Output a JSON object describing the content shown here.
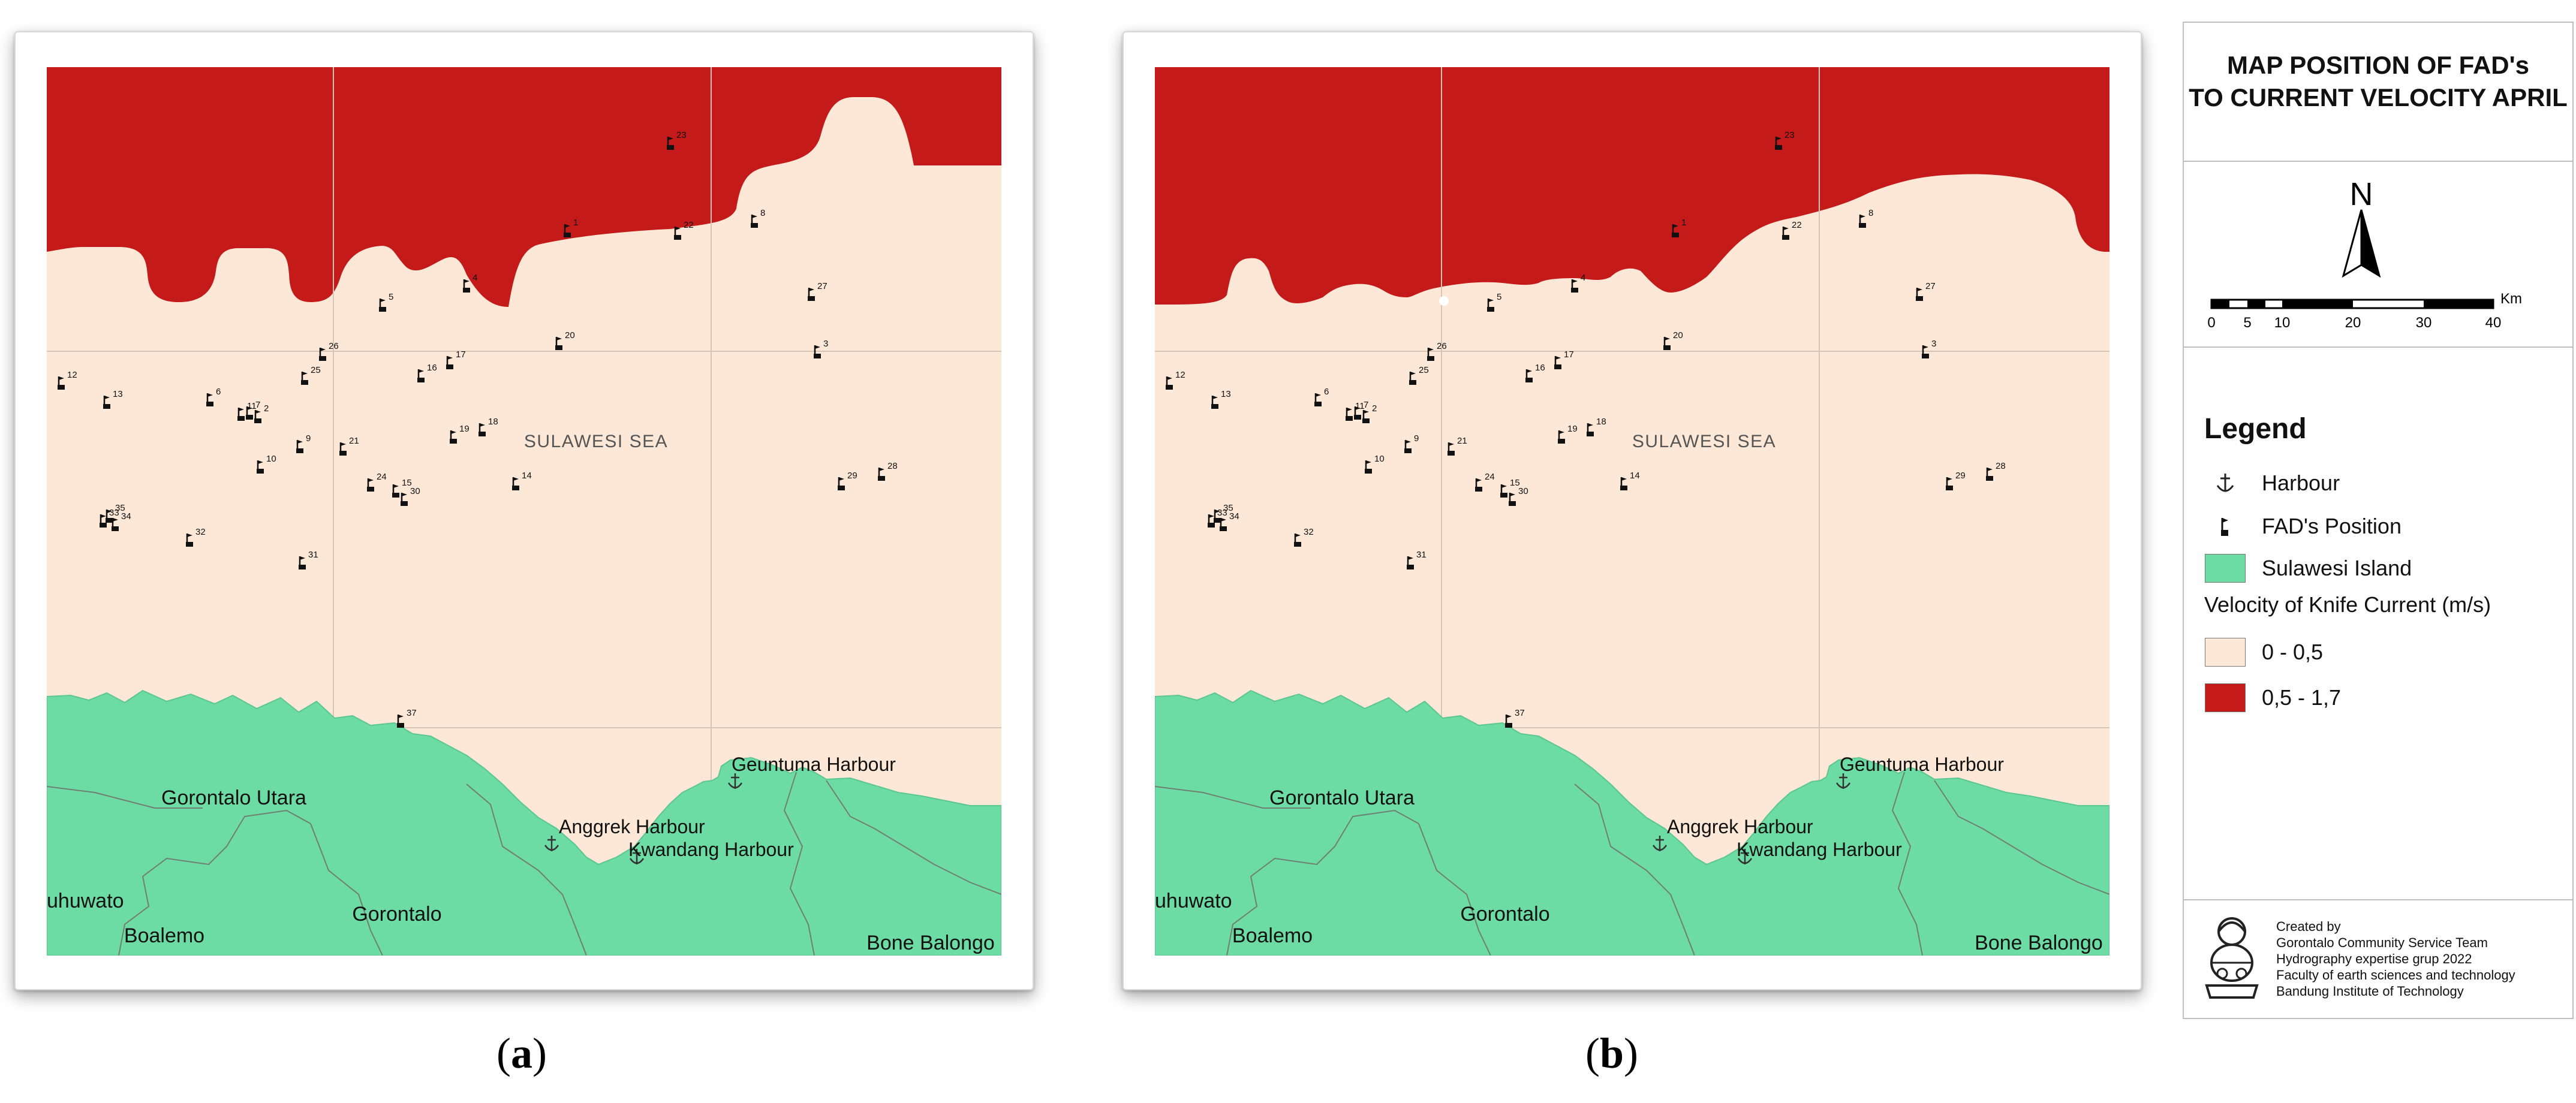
{
  "panels": [
    {
      "id": "a",
      "caption_open": "(",
      "caption_letter": "a",
      "caption_close": ")"
    },
    {
      "id": "b",
      "caption_open": "(",
      "caption_letter": "b",
      "caption_close": ")"
    }
  ],
  "map_labels": {
    "sea": "SULAWESI SEA",
    "gorontalo_utara": "Gorontalo Utara",
    "gorontalo": "Gorontalo",
    "boalemo": "Boalemo",
    "pohuwato": "uhuwato",
    "bone_balongo": "Bone Balongo",
    "geuntuma": "Geuntuma Harbour",
    "anggrek": "Anggrek Harbour",
    "kwandang": "Kwandang Harbour"
  },
  "fad_positions": [
    {
      "id": "1"
    },
    {
      "id": "2"
    },
    {
      "id": "3"
    },
    {
      "id": "4"
    },
    {
      "id": "5"
    },
    {
      "id": "6"
    },
    {
      "id": "7"
    },
    {
      "id": "8"
    },
    {
      "id": "9"
    },
    {
      "id": "10"
    },
    {
      "id": "11"
    },
    {
      "id": "12"
    },
    {
      "id": "13"
    },
    {
      "id": "14"
    },
    {
      "id": "15"
    },
    {
      "id": "16"
    },
    {
      "id": "17"
    },
    {
      "id": "18"
    },
    {
      "id": "19"
    },
    {
      "id": "20"
    },
    {
      "id": "21"
    },
    {
      "id": "22"
    },
    {
      "id": "23"
    },
    {
      "id": "24"
    },
    {
      "id": "25"
    },
    {
      "id": "26"
    },
    {
      "id": "27"
    },
    {
      "id": "28"
    },
    {
      "id": "29"
    },
    {
      "id": "30"
    },
    {
      "id": "31"
    },
    {
      "id": "32"
    },
    {
      "id": "33"
    },
    {
      "id": "34"
    },
    {
      "id": "35"
    },
    {
      "id": "37"
    }
  ],
  "legend_panel": {
    "title_line1": "MAP POSITION OF FAD's",
    "title_line2": "TO CURRENT VELOCITY APRIL",
    "north": "N",
    "scale_unit": "Km",
    "scale_ticks": [
      "0",
      "5",
      "10",
      "20",
      "30",
      "40"
    ],
    "legend_title": "Legend",
    "harbour": "Harbour",
    "fad": "FAD's Position",
    "island": "Sulawesi Island",
    "velocity_title": "Velocity of Knife Current (m/s)",
    "class_low": "0 - 0,5",
    "class_high": "0,5 - 1,7",
    "credits": [
      "Created by",
      "Gorontalo Community Service Team",
      "Hydrography expertise grup 2022",
      "Faculty of earth sciences and technology",
      "Bandung Institute of Technology"
    ]
  },
  "colors": {
    "current_high": "#c41a1a",
    "current_low": "#fde8d7",
    "island": "#6ddba4",
    "boundary": "#6f7f72",
    "grid": "#d6c6b8"
  }
}
